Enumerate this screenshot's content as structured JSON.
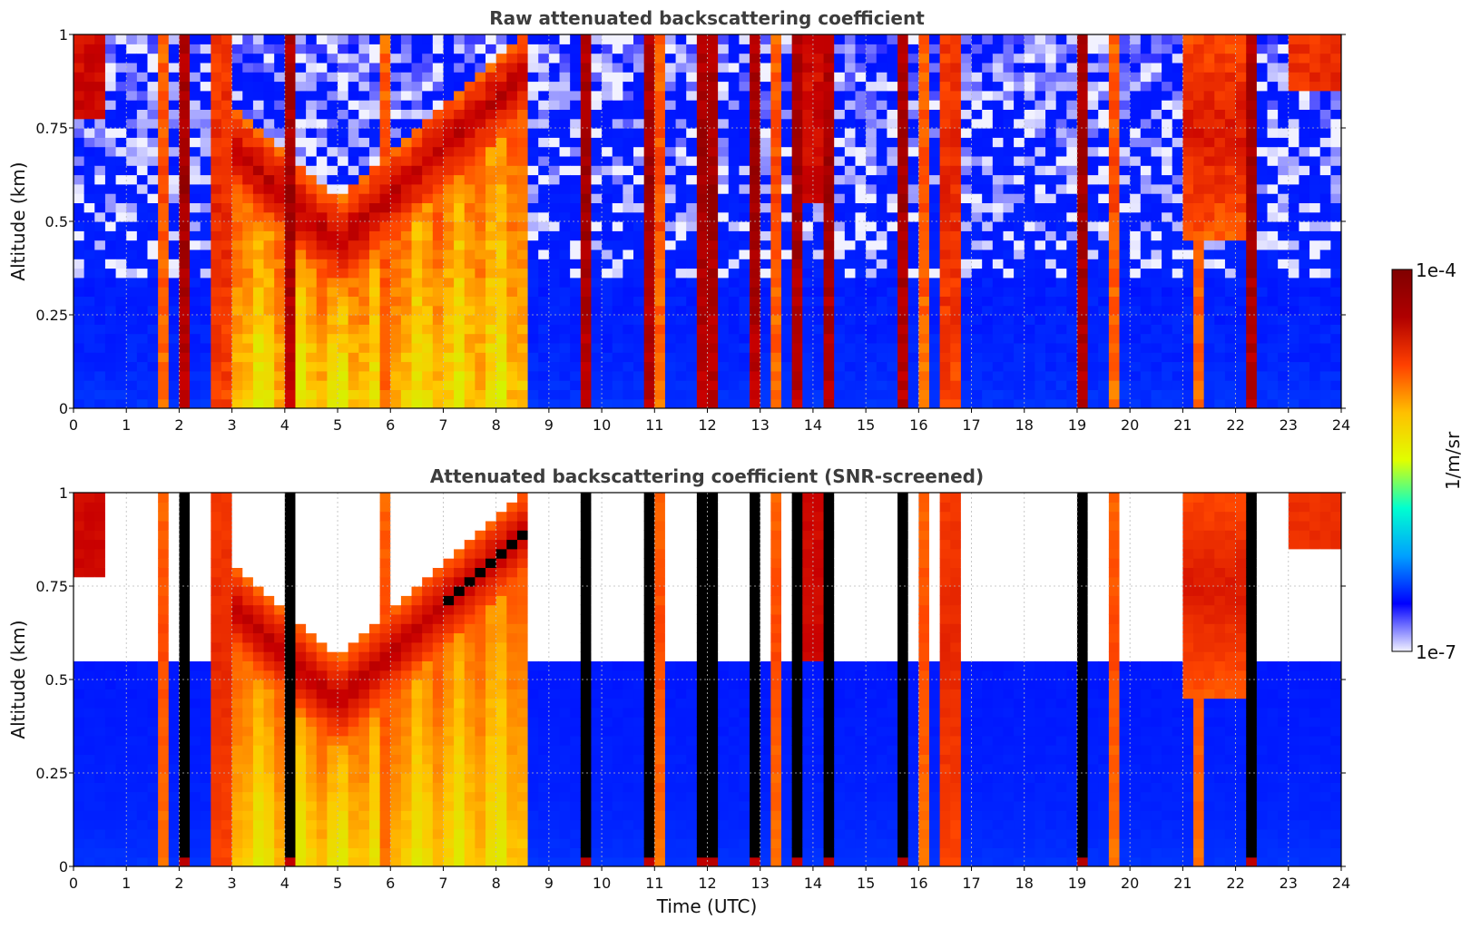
{
  "chart_data": [
    {
      "type": "heatmap",
      "title": "Raw attenuated backscattering coefficient",
      "xlabel": "",
      "ylabel": "Altitude (km)",
      "xlim": [
        0,
        24
      ],
      "ylim": [
        0,
        1
      ],
      "x_ticks": [
        "0",
        "1",
        "2",
        "3",
        "4",
        "5",
        "6",
        "7",
        "8",
        "9",
        "10",
        "11",
        "12",
        "13",
        "14",
        "15",
        "16",
        "17",
        "18",
        "19",
        "20",
        "21",
        "22",
        "23",
        "24"
      ],
      "y_ticks": [
        "0",
        "0.25",
        "0.5",
        "0.75",
        "1"
      ],
      "grid": true,
      "screened": false,
      "colormap": "jet",
      "color_scale": "log"
    },
    {
      "type": "heatmap",
      "title": "Attenuated backscattering coefficient (SNR-screened)",
      "xlabel": "Time (UTC)",
      "ylabel": "Altitude (km)",
      "xlim": [
        0,
        24
      ],
      "ylim": [
        0,
        1
      ],
      "x_ticks": [
        "0",
        "1",
        "2",
        "3",
        "4",
        "5",
        "6",
        "7",
        "8",
        "9",
        "10",
        "11",
        "12",
        "13",
        "14",
        "15",
        "16",
        "17",
        "18",
        "19",
        "20",
        "21",
        "22",
        "23",
        "24"
      ],
      "y_ticks": [
        "0",
        "0.25",
        "0.5",
        "0.75",
        "1"
      ],
      "grid": true,
      "screened": true,
      "colormap": "jet",
      "color_scale": "log"
    }
  ],
  "colorbar": {
    "min_label": "1e-7",
    "max_label": "1e-4",
    "label": "1/m/sr",
    "colors": [
      "#f2f2ff",
      "#0000ff",
      "#00a0ff",
      "#00ffd0",
      "#e0ff00",
      "#ffc000",
      "#ff4000",
      "#b00000",
      "#800000"
    ]
  },
  "colors": {
    "screened_clipped": "#000000",
    "no_data": "#ffffff",
    "grid": "#bbbbbb"
  }
}
